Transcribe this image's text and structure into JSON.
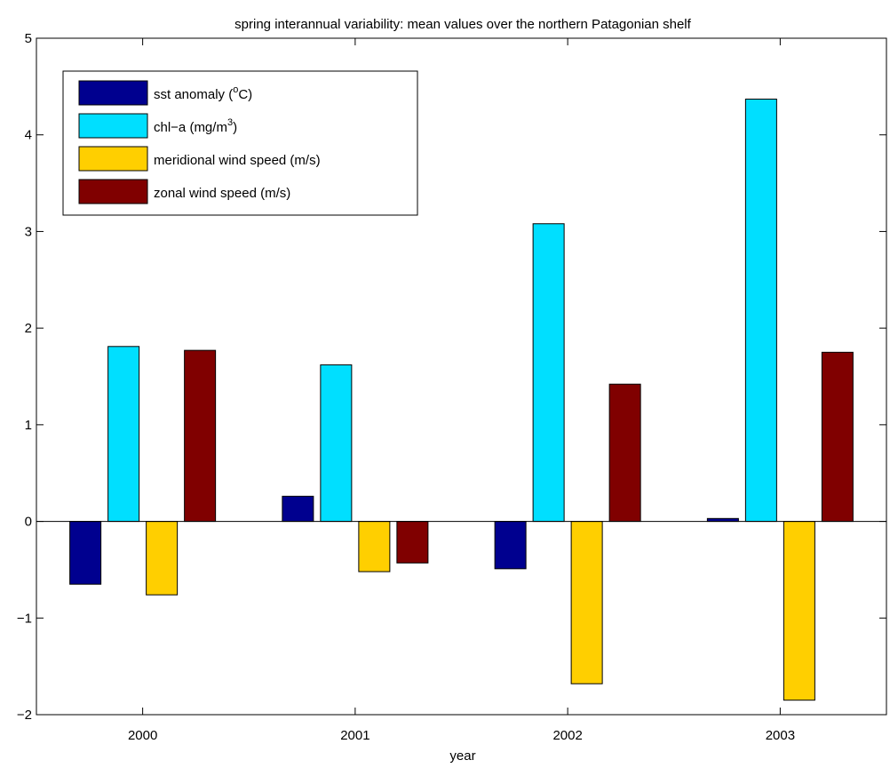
{
  "chart_data": {
    "type": "bar",
    "title": "spring interannual variability: mean values over the northern Patagonian shelf",
    "xlabel": "year",
    "ylabel": "",
    "categories": [
      "2000",
      "2001",
      "2002",
      "2003"
    ],
    "ylim": [
      -2,
      5
    ],
    "yticks": [
      "5",
      "4",
      "3",
      "2",
      "1",
      "0",
      "−1",
      "−2"
    ],
    "grid": false,
    "legend_position": "top-left",
    "series": [
      {
        "name": "sst anomaly (",
        "name_sup": "o",
        "name_suffix": "C)",
        "color": "#00008F",
        "values": [
          -0.65,
          0.26,
          -0.49,
          0.03
        ]
      },
      {
        "name": "chl−a (mg/m",
        "name_sup": "3",
        "name_suffix": ")",
        "color": "#00DFFF",
        "values": [
          1.81,
          1.62,
          3.08,
          4.37
        ]
      },
      {
        "name": "meridional wind speed (m/s)",
        "name_sup": "",
        "name_suffix": "",
        "color": "#FFCF00",
        "values": [
          -0.76,
          -0.52,
          -1.68,
          -1.85
        ]
      },
      {
        "name": "zonal wind speed (m/s)",
        "name_sup": "",
        "name_suffix": "",
        "color": "#800000",
        "values": [
          1.77,
          -0.43,
          1.42,
          1.75
        ]
      }
    ]
  }
}
